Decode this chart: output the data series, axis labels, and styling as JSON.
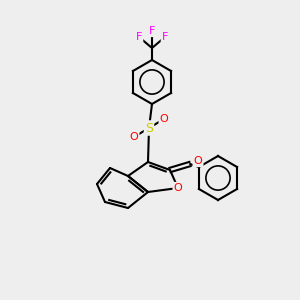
{
  "background_color": "#eeeeee",
  "atom_colors": {
    "F": "#ff00ff",
    "O": "#ff0000",
    "S": "#cccc00"
  },
  "bond_color": "#000000",
  "bond_width": 1.5
}
